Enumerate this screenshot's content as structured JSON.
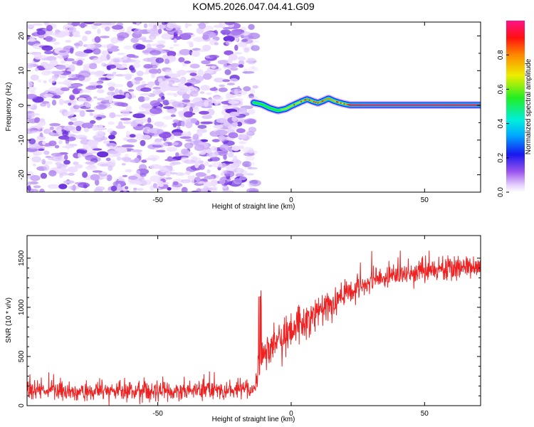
{
  "figure_title": "KOM5.2026.047.04.41.G09",
  "colors": {
    "snr_line": "#ee2222",
    "carrier_core": "#ff2222",
    "noise": "#7733ee"
  },
  "chart_data": [
    {
      "type": "heatmap",
      "title": "KOM5.2026.047.04.41.G09",
      "xlabel": "Height of straight line (km)",
      "ylabel": "Frequency (Hz)",
      "xlim": [
        -99,
        71
      ],
      "ylim": [
        -25,
        24
      ],
      "x_ticks": [
        -50,
        0,
        50
      ],
      "y_ticks": [
        -20,
        -10,
        0,
        10,
        20
      ],
      "noise_region_x": [
        -99,
        -15
      ],
      "noise_level": 0.12,
      "carrier_track": {
        "x": [
          -14,
          -11,
          -8,
          -5,
          -2,
          0,
          2,
          4,
          6,
          8,
          10,
          12,
          14,
          16,
          18,
          20,
          22,
          30,
          40,
          50,
          60,
          71
        ],
        "freq": [
          0.8,
          0.3,
          -0.8,
          -1.5,
          -1.0,
          -0.2,
          0.5,
          1.2,
          1.8,
          1.2,
          0.7,
          1.3,
          2.0,
          1.3,
          0.8,
          0.4,
          0.1,
          0.1,
          0.1,
          0.1,
          0.1,
          0.1
        ],
        "amplitude": [
          0.4,
          0.5,
          0.55,
          0.6,
          0.65,
          0.65,
          0.65,
          0.7,
          0.8,
          0.75,
          0.75,
          0.8,
          0.8,
          0.75,
          0.7,
          0.7,
          0.95,
          0.98,
          0.98,
          0.98,
          0.97,
          0.97
        ]
      },
      "colorbar": {
        "label": "Normalized spectral amplitude",
        "range": [
          0,
          1
        ],
        "ticks": [
          "0.0",
          "0.2",
          "0.4",
          "0.6",
          "0.8"
        ],
        "colormap": "rainbow-purple-blue-cyan-green-yellow-orange-red-pink"
      }
    },
    {
      "type": "line",
      "xlabel": "Height of straight line (km)",
      "ylabel": "SNR (10 * v/v)",
      "xlim": [
        -99,
        71
      ],
      "ylim": [
        0,
        1730
      ],
      "x_ticks": [
        -50,
        0,
        50
      ],
      "y_ticks": [
        0,
        500,
        1000,
        1500
      ],
      "series": [
        {
          "name": "SNR",
          "trend_x": [
            -99,
            -80,
            -60,
            -40,
            -20,
            -14,
            -12,
            -10,
            -5,
            0,
            5,
            10,
            20,
            30,
            40,
            50,
            60,
            71
          ],
          "trend_y": [
            160,
            150,
            145,
            150,
            160,
            170,
            350,
            560,
            650,
            750,
            850,
            950,
            1130,
            1260,
            1340,
            1370,
            1400,
            1420
          ],
          "noise_amplitude": [
            110,
            110,
            110,
            110,
            110,
            110,
            140,
            190,
            200,
            200,
            200,
            190,
            160,
            150,
            140,
            140,
            140,
            140
          ]
        }
      ]
    }
  ]
}
